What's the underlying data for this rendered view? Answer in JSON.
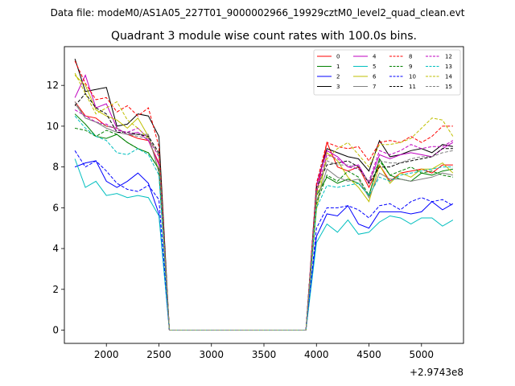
{
  "chart_data": {
    "type": "line",
    "suptitle": "Data file: modeM0/AS1A05_227T01_9000002966_19929cztM0_level2_quad_clean.evt",
    "title": "Quadrant 3 module wise count rates with 100.0s bins.",
    "xlabel": "",
    "ylabel": "",
    "x_offset_label": "+2.9743e8",
    "xlim": [
      1600,
      5400
    ],
    "ylim": [
      -0.65,
      13.9
    ],
    "xticks": [
      2000,
      2500,
      3000,
      3500,
      4000,
      4500,
      5000
    ],
    "xtick_labels": [
      "2000",
      "2500",
      "3000",
      "3500",
      "4000",
      "4500",
      "5000"
    ],
    "yticks": [
      0,
      2,
      4,
      6,
      8,
      10,
      12
    ],
    "ytick_labels": [
      "0",
      "2",
      "4",
      "6",
      "8",
      "10",
      "12"
    ],
    "grid": false,
    "legend_placement": "top-right",
    "x": [
      1700,
      1800,
      1900,
      2000,
      2100,
      2200,
      2300,
      2400,
      2500,
      2600,
      2700,
      2800,
      2900,
      3000,
      3100,
      3200,
      3300,
      3400,
      3500,
      3600,
      3700,
      3800,
      3900,
      4000,
      4100,
      4200,
      4300,
      4400,
      4500,
      4600,
      4700,
      4800,
      4900,
      5000,
      5100,
      5200,
      5300
    ],
    "series": [
      {
        "name": "0",
        "color": "#ff0000",
        "dash": "solid",
        "values": [
          11.2,
          10.5,
          10.4,
          10.0,
          9.9,
          9.6,
          9.4,
          9.3,
          8.2,
          0,
          0,
          0,
          0,
          0,
          0,
          0,
          0,
          0,
          0,
          0,
          0,
          0,
          0,
          6.7,
          9.2,
          8.0,
          7.8,
          8.0,
          7.0,
          8.1,
          7.3,
          7.7,
          7.8,
          7.9,
          7.7,
          8.1,
          8.1
        ]
      },
      {
        "name": "1",
        "color": "#008000",
        "dash": "solid",
        "values": [
          10.6,
          10.1,
          9.5,
          9.4,
          9.6,
          9.2,
          8.9,
          8.7,
          7.9,
          0,
          0,
          0,
          0,
          0,
          0,
          0,
          0,
          0,
          0,
          0,
          0,
          0,
          0,
          6.6,
          7.5,
          7.2,
          7.4,
          7.2,
          6.6,
          8.4,
          7.6,
          7.4,
          7.3,
          7.7,
          7.6,
          7.8,
          7.9
        ]
      },
      {
        "name": "2",
        "color": "#0000ff",
        "dash": "solid",
        "values": [
          8.0,
          8.2,
          8.3,
          7.3,
          7.0,
          7.3,
          7.7,
          7.2,
          5.7,
          0,
          0,
          0,
          0,
          0,
          0,
          0,
          0,
          0,
          0,
          0,
          0,
          0,
          0,
          4.6,
          5.7,
          5.6,
          6.1,
          5.2,
          5.0,
          5.8,
          5.8,
          5.8,
          5.7,
          5.8,
          6.3,
          5.9,
          6.2
        ]
      },
      {
        "name": "3",
        "color": "#000000",
        "dash": "solid",
        "values": [
          13.3,
          11.7,
          11.8,
          11.9,
          10.0,
          10.1,
          10.6,
          10.5,
          9.5,
          0,
          0,
          0,
          0,
          0,
          0,
          0,
          0,
          0,
          0,
          0,
          0,
          0,
          0,
          7.1,
          8.9,
          8.7,
          8.5,
          8.4,
          7.8,
          9.3,
          8.5,
          8.6,
          8.8,
          8.9,
          8.7,
          9.1,
          9.0
        ]
      },
      {
        "name": "4",
        "color": "#bf00bf",
        "dash": "solid",
        "values": [
          11.4,
          12.5,
          10.9,
          11.1,
          9.9,
          9.6,
          9.7,
          9.3,
          8.1,
          0,
          0,
          0,
          0,
          0,
          0,
          0,
          0,
          0,
          0,
          0,
          0,
          0,
          0,
          7.1,
          8.8,
          8.5,
          8.0,
          8.1,
          7.2,
          8.6,
          8.4,
          8.6,
          8.7,
          8.6,
          8.5,
          8.9,
          9.2
        ]
      },
      {
        "name": "5",
        "color": "#00bfbf",
        "dash": "solid",
        "values": [
          8.4,
          7.0,
          7.3,
          6.6,
          6.7,
          6.5,
          6.6,
          6.5,
          5.6,
          0,
          0,
          0,
          0,
          0,
          0,
          0,
          0,
          0,
          0,
          0,
          0,
          0,
          0,
          4.3,
          5.2,
          4.8,
          5.4,
          4.7,
          4.8,
          5.3,
          5.6,
          5.5,
          5.2,
          5.5,
          5.5,
          5.1,
          5.4
        ]
      },
      {
        "name": "6",
        "color": "#bfbf00",
        "dash": "solid",
        "values": [
          12.5,
          12.0,
          10.8,
          10.5,
          10.3,
          9.9,
          10.4,
          9.5,
          7.8,
          0,
          0,
          0,
          0,
          0,
          0,
          0,
          0,
          0,
          0,
          0,
          0,
          0,
          0,
          5.9,
          8.7,
          8.3,
          7.5,
          7.0,
          6.3,
          8.1,
          7.2,
          7.7,
          7.5,
          7.9,
          7.9,
          8.2,
          7.7
        ]
      },
      {
        "name": "7",
        "color": "#808080",
        "dash": "solid",
        "values": [
          11.1,
          10.4,
          10.2,
          9.9,
          9.7,
          9.6,
          9.6,
          9.6,
          7.7,
          0,
          0,
          0,
          0,
          0,
          0,
          0,
          0,
          0,
          0,
          0,
          0,
          0,
          0,
          6.3,
          7.9,
          7.5,
          7.3,
          7.4,
          6.5,
          7.7,
          7.4,
          7.4,
          7.3,
          7.4,
          7.5,
          7.7,
          7.6
        ]
      },
      {
        "name": "8",
        "color": "#ff0000",
        "dash": "dashed",
        "values": [
          13.2,
          12.1,
          11.3,
          11.4,
          10.7,
          11.0,
          10.5,
          10.9,
          9.0,
          0,
          0,
          0,
          0,
          0,
          0,
          0,
          0,
          0,
          0,
          0,
          0,
          0,
          0,
          7.2,
          9.2,
          9.0,
          8.9,
          9.0,
          8.3,
          9.2,
          9.3,
          9.2,
          9.5,
          9.2,
          9.5,
          10.0,
          10.0
        ]
      },
      {
        "name": "9",
        "color": "#008000",
        "dash": "dashed",
        "values": [
          9.9,
          9.8,
          9.5,
          9.8,
          9.6,
          9.2,
          8.9,
          8.7,
          7.9,
          0,
          0,
          0,
          0,
          0,
          0,
          0,
          0,
          0,
          0,
          0,
          0,
          0,
          0,
          6.2,
          7.6,
          7.3,
          7.8,
          7.5,
          6.6,
          8.3,
          7.6,
          7.8,
          8.0,
          7.7,
          7.8,
          7.6,
          7.5
        ]
      },
      {
        "name": "10",
        "color": "#0000ff",
        "dash": "dashed",
        "values": [
          8.8,
          8.0,
          8.3,
          7.8,
          7.2,
          6.9,
          6.8,
          7.1,
          6.4,
          0,
          0,
          0,
          0,
          0,
          0,
          0,
          0,
          0,
          0,
          0,
          0,
          0,
          0,
          5.0,
          6.0,
          6.0,
          6.1,
          5.9,
          5.5,
          6.1,
          6.2,
          5.9,
          6.3,
          6.5,
          6.3,
          6.4,
          6.1
        ]
      },
      {
        "name": "11",
        "color": "#000000",
        "dash": "dashed",
        "values": [
          11.0,
          11.6,
          10.9,
          10.6,
          9.7,
          9.7,
          9.6,
          9.5,
          8.7,
          0,
          0,
          0,
          0,
          0,
          0,
          0,
          0,
          0,
          0,
          0,
          0,
          0,
          0,
          7.0,
          8.1,
          8.2,
          8.3,
          8.0,
          7.2,
          8.0,
          8.0,
          8.2,
          8.3,
          8.4,
          8.5,
          8.9,
          8.9
        ]
      },
      {
        "name": "12",
        "color": "#bf00bf",
        "dash": "dashed",
        "values": [
          10.8,
          10.5,
          10.2,
          10.1,
          9.8,
          9.7,
          9.9,
          9.4,
          8.5,
          0,
          0,
          0,
          0,
          0,
          0,
          0,
          0,
          0,
          0,
          0,
          0,
          0,
          0,
          6.8,
          8.6,
          8.4,
          8.0,
          7.9,
          7.3,
          8.8,
          8.6,
          8.8,
          9.1,
          8.9,
          9.0,
          9.0,
          9.3
        ]
      },
      {
        "name": "13",
        "color": "#00bfbf",
        "dash": "dashed",
        "values": [
          10.5,
          9.9,
          9.5,
          9.3,
          8.7,
          8.6,
          8.9,
          8.6,
          7.6,
          0,
          0,
          0,
          0,
          0,
          0,
          0,
          0,
          0,
          0,
          0,
          0,
          0,
          0,
          6.0,
          7.1,
          7.0,
          7.1,
          7.2,
          6.6,
          7.5,
          7.3,
          7.6,
          7.7,
          7.8,
          7.9,
          8.0,
          8.0
        ]
      },
      {
        "name": "14",
        "color": "#bfbf00",
        "dash": "dashed",
        "values": [
          12.6,
          11.6,
          10.6,
          10.9,
          11.2,
          10.3,
          9.9,
          9.4,
          8.6,
          0,
          0,
          0,
          0,
          0,
          0,
          0,
          0,
          0,
          0,
          0,
          0,
          0,
          0,
          6.6,
          8.4,
          8.9,
          9.2,
          8.6,
          8.0,
          9.1,
          9.1,
          9.2,
          9.4,
          9.9,
          10.4,
          10.3,
          9.5
        ]
      },
      {
        "name": "15",
        "color": "#808080",
        "dash": "dashed",
        "values": [
          11.2,
          10.4,
          10.2,
          10.0,
          9.9,
          9.6,
          9.5,
          9.4,
          8.6,
          0,
          0,
          0,
          0,
          0,
          0,
          0,
          0,
          0,
          0,
          0,
          0,
          0,
          0,
          6.8,
          8.3,
          8.1,
          8.1,
          7.9,
          7.3,
          8.3,
          8.2,
          8.2,
          8.4,
          8.5,
          8.5,
          8.7,
          8.8
        ]
      }
    ]
  }
}
